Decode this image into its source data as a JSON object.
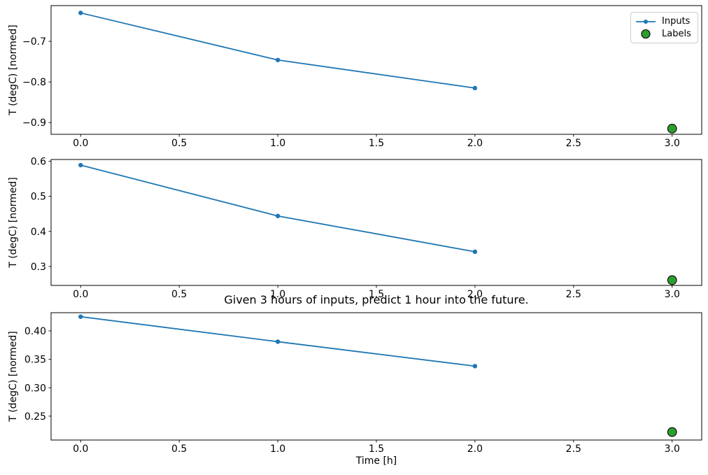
{
  "chart_data": {
    "type": "line",
    "title": "Given 3 hours of inputs, predict 1 hour into the future.",
    "xlabel": "Time [h]",
    "grid": false,
    "legend_position": "upper right",
    "legend_items": [
      {
        "label": "Inputs",
        "marker": "line-with-dot"
      },
      {
        "label": "Labels",
        "marker": "circle"
      }
    ],
    "colors": {
      "inputs": "#1f77b4",
      "labels_fill": "#2ca02c",
      "labels_edge": "#1a1a1a",
      "axis": "#000000"
    },
    "xlim": [
      -0.15,
      3.15
    ],
    "xticks": [
      0.0,
      0.5,
      1.0,
      1.5,
      2.0,
      2.5,
      3.0
    ],
    "xtick_labels": [
      "0.0",
      "0.5",
      "1.0",
      "1.5",
      "2.0",
      "2.5",
      "3.0"
    ],
    "subplots": [
      {
        "ylabel": "T (degC) [normed]",
        "ylim": [
          -0.929,
          -0.612
        ],
        "ytick_values": [
          -0.7,
          -0.8,
          -0.9
        ],
        "ytick_labels": [
          "−0.7",
          "−0.8",
          "−0.9"
        ],
        "inputs": {
          "x": [
            0,
            1,
            2
          ],
          "y": [
            -0.63,
            -0.746,
            -0.815
          ]
        },
        "labels": {
          "x": [
            3
          ],
          "y": [
            -0.915
          ]
        }
      },
      {
        "ylabel": "T (degC) [normed]",
        "ylim": [
          0.246,
          0.605
        ],
        "ytick_values": [
          0.6,
          0.5,
          0.4,
          0.3
        ],
        "ytick_labels": [
          "0.6",
          "0.5",
          "0.4",
          "0.3"
        ],
        "inputs": {
          "x": [
            0,
            1,
            2
          ],
          "y": [
            0.589,
            0.444,
            0.342
          ]
        },
        "labels": {
          "x": [
            3
          ],
          "y": [
            0.261
          ]
        }
      },
      {
        "ylabel": "T (degC) [normed]",
        "ylim": [
          0.208,
          0.432
        ],
        "ytick_values": [
          0.4,
          0.35,
          0.3,
          0.25
        ],
        "ytick_labels": [
          "0.40",
          "0.35",
          "0.30",
          "0.25"
        ],
        "inputs": {
          "x": [
            0,
            1,
            2
          ],
          "y": [
            0.425,
            0.381,
            0.338
          ]
        },
        "labels": {
          "x": [
            3
          ],
          "y": [
            0.222
          ]
        }
      }
    ]
  }
}
